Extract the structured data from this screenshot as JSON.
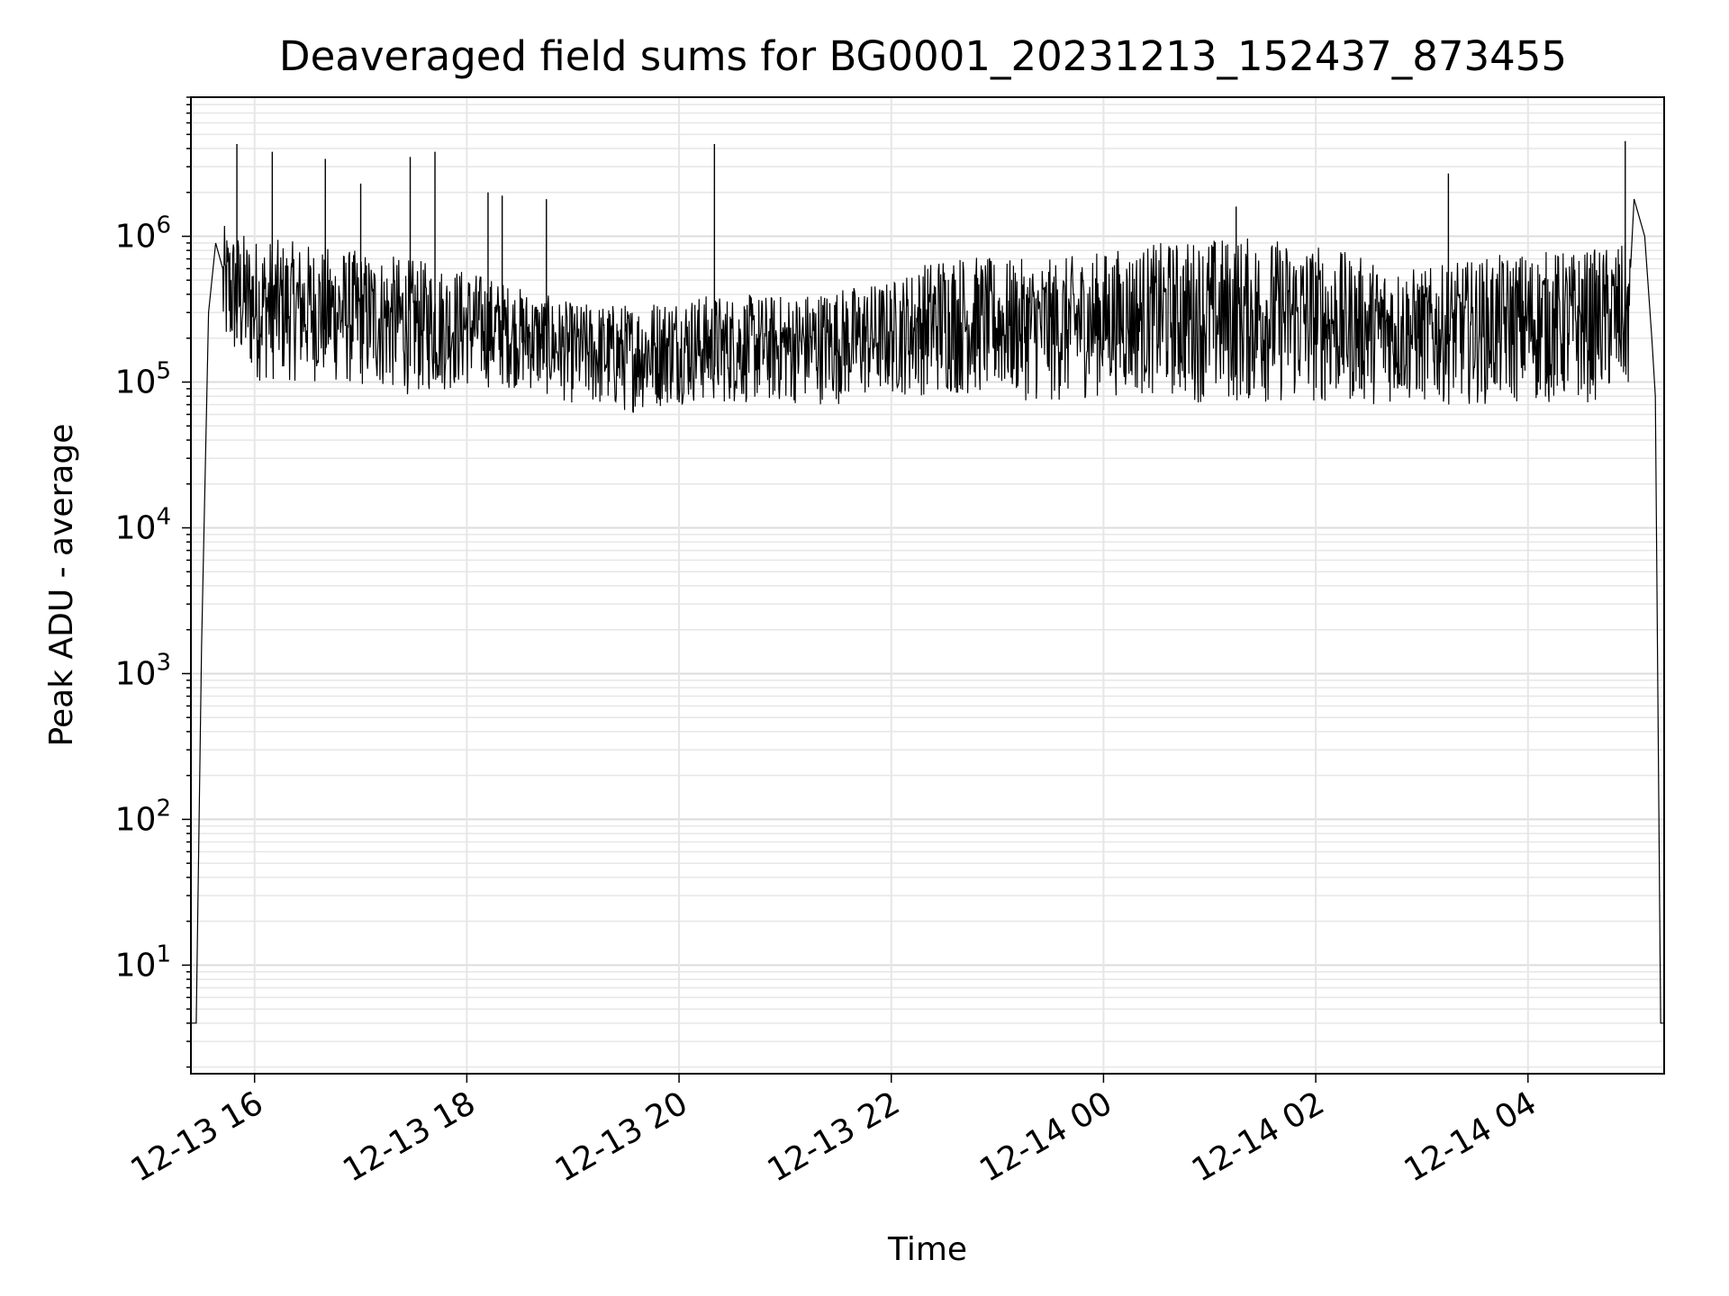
{
  "chart_data": {
    "type": "line",
    "title": "Deaveraged field sums for BG0001_20231213_152437_873455",
    "xlabel": "Time",
    "ylabel": "Peak ADU - average",
    "yscale": "log",
    "grid": true,
    "line_color": "#000000",
    "x_tick_labels": [
      "12-13 16",
      "12-13 18",
      "12-13 20",
      "12-13 22",
      "12-14 00",
      "12-14 02",
      "12-14 04"
    ],
    "x_tick_times": [
      "2023-12-13T16:00",
      "2023-12-13T18:00",
      "2023-12-13T20:00",
      "2023-12-13T22:00",
      "2023-12-14T00:00",
      "2023-12-14T02:00",
      "2023-12-14T04:00"
    ],
    "xlim": [
      "2023-12-13T15:24",
      "2023-12-14T05:17"
    ],
    "y_ticks": [
      {
        "base": "10",
        "exp": "1",
        "value": 10
      },
      {
        "base": "10",
        "exp": "2",
        "value": 100
      },
      {
        "base": "10",
        "exp": "3",
        "value": 1000
      },
      {
        "base": "10",
        "exp": "4",
        "value": 10000
      },
      {
        "base": "10",
        "exp": "5",
        "value": 100000
      },
      {
        "base": "10",
        "exp": "6",
        "value": 1000000
      }
    ],
    "ylim": [
      1.8,
      9000000
    ],
    "series": [
      {
        "x": [
          "2023-12-13T15:24",
          "2023-12-13T15:25",
          "2023-12-13T15:27",
          "2023-12-13T15:30",
          "2023-12-13T15:34",
          "2023-12-13T15:38",
          "2023-12-13T15:42",
          "2023-12-13T15:46",
          "2023-12-13T15:50",
          "2023-12-13T16:00",
          "2023-12-13T16:20",
          "2023-12-13T16:40",
          "2023-12-13T17:00",
          "2023-12-13T17:20",
          "2023-12-13T17:40",
          "2023-12-13T18:00",
          "2023-12-13T18:20",
          "2023-12-13T18:40",
          "2023-12-13T19:00",
          "2023-12-13T19:20",
          "2023-12-13T19:40",
          "2023-12-13T20:00",
          "2023-12-13T20:20",
          "2023-12-13T20:40",
          "2023-12-13T21:00",
          "2023-12-13T21:20",
          "2023-12-13T21:40",
          "2023-12-13T22:00",
          "2023-12-13T22:20",
          "2023-12-13T22:40",
          "2023-12-13T23:00",
          "2023-12-13T23:20",
          "2023-12-13T23:40",
          "2023-12-14T00:00",
          "2023-12-14T00:20",
          "2023-12-14T00:40",
          "2023-12-14T01:00",
          "2023-12-14T01:20",
          "2023-12-14T01:40",
          "2023-12-14T02:00",
          "2023-12-14T02:20",
          "2023-12-14T02:40",
          "2023-12-14T03:00",
          "2023-12-14T03:20",
          "2023-12-14T03:40",
          "2023-12-14T04:00",
          "2023-12-14T04:20",
          "2023-12-14T04:40",
          "2023-12-14T04:50",
          "2023-12-14T04:55",
          "2023-12-14T05:00",
          "2023-12-14T05:06",
          "2023-12-14T05:10",
          "2023-12-14T05:12",
          "2023-12-14T05:15",
          "2023-12-14T05:17"
        ],
        "y": [
          4,
          4,
          4,
          1500,
          300000,
          900000,
          600000,
          400000,
          350000,
          350000,
          320000,
          300000,
          250000,
          230000,
          220000,
          200000,
          180000,
          170000,
          150000,
          140000,
          140000,
          150000,
          140000,
          150000,
          150000,
          150000,
          160000,
          170000,
          250000,
          250000,
          250000,
          250000,
          230000,
          300000,
          300000,
          330000,
          300000,
          300000,
          300000,
          280000,
          250000,
          250000,
          230000,
          250000,
          250000,
          250000,
          250000,
          260000,
          280000,
          300000,
          1800000,
          1000000,
          200000,
          80000,
          4,
          4
        ]
      }
    ],
    "envelope": {
      "x": [
        "2023-12-13T15:42",
        "2023-12-13T16:00",
        "2023-12-13T16:30",
        "2023-12-13T17:00",
        "2023-12-13T17:30",
        "2023-12-13T18:00",
        "2023-12-13T18:30",
        "2023-12-13T19:00",
        "2023-12-13T19:30",
        "2023-12-13T20:00",
        "2023-12-13T20:30",
        "2023-12-13T21:00",
        "2023-12-13T21:30",
        "2023-12-13T22:00",
        "2023-12-13T22:30",
        "2023-12-13T23:00",
        "2023-12-13T23:30",
        "2023-12-14T00:00",
        "2023-12-14T00:30",
        "2023-12-14T01:00",
        "2023-12-14T01:30",
        "2023-12-14T02:00",
        "2023-12-14T02:30",
        "2023-12-14T03:00",
        "2023-12-14T03:30",
        "2023-12-14T04:00",
        "2023-12-14T04:30",
        "2023-12-14T04:55"
      ],
      "lo": [
        150000,
        100000,
        100000,
        90000,
        80000,
        90000,
        90000,
        70000,
        60000,
        70000,
        70000,
        70000,
        70000,
        80000,
        80000,
        80000,
        70000,
        80000,
        80000,
        70000,
        70000,
        70000,
        70000,
        70000,
        70000,
        70000,
        70000,
        80000
      ],
      "hi": [
        1200000,
        1000000,
        900000,
        800000,
        700000,
        600000,
        450000,
        350000,
        350000,
        400000,
        400000,
        400000,
        450000,
        500000,
        800000,
        700000,
        700000,
        800000,
        900000,
        1000000,
        1000000,
        900000,
        700000,
        600000,
        700000,
        800000,
        800000,
        900000
      ]
    },
    "spikes": [
      {
        "x": "2023-12-13T15:50",
        "y": 4300000
      },
      {
        "x": "2023-12-13T16:10",
        "y": 3800000
      },
      {
        "x": "2023-12-13T16:40",
        "y": 3400000
      },
      {
        "x": "2023-12-13T17:00",
        "y": 2300000
      },
      {
        "x": "2023-12-13T17:28",
        "y": 3500000
      },
      {
        "x": "2023-12-13T17:42",
        "y": 3800000
      },
      {
        "x": "2023-12-13T18:12",
        "y": 2000000
      },
      {
        "x": "2023-12-13T18:20",
        "y": 1900000
      },
      {
        "x": "2023-12-13T18:45",
        "y": 1800000
      },
      {
        "x": "2023-12-13T20:20",
        "y": 4300000
      },
      {
        "x": "2023-12-14T01:15",
        "y": 1600000
      },
      {
        "x": "2023-12-14T03:15",
        "y": 2700000
      },
      {
        "x": "2023-12-14T04:55",
        "y": 4500000
      }
    ]
  }
}
